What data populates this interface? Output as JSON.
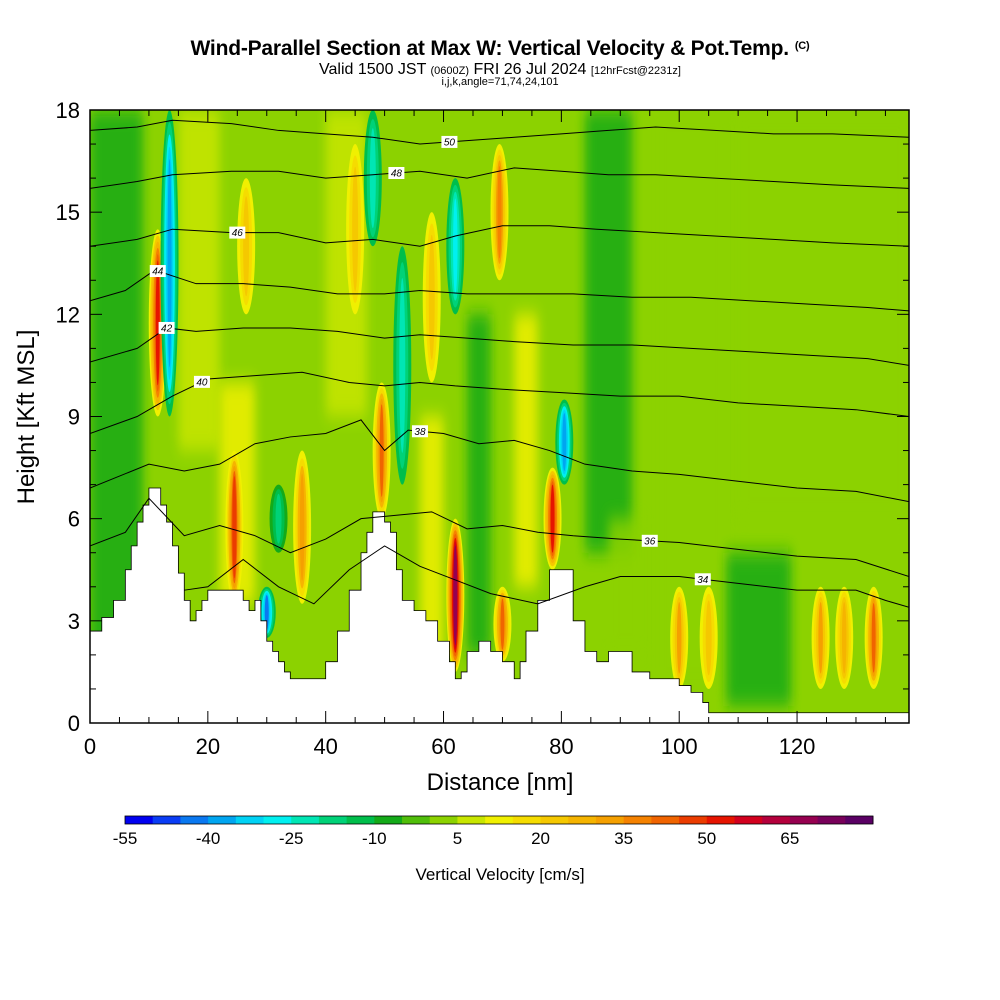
{
  "titles": {
    "main": "Wind-Parallel Section at Max W: Vertical Velocity & Pot.Temp.",
    "copyright": "(C)",
    "valid_prefix": "Valid 1500 JST",
    "valid_utc": "(0600Z)",
    "valid_date": "FRI 26 Jul 2024",
    "forecast": "[12hrFcst@2231z]",
    "params": "i,j,k,angle=71,74,24,101"
  },
  "chart_data": {
    "type": "heatmap",
    "xlabel": "Distance [nm]",
    "ylabel": "Height [Kft MSL]",
    "xlim": [
      0,
      139
    ],
    "ylim": [
      0,
      18
    ],
    "x_ticks": [
      0,
      20,
      40,
      60,
      80,
      100,
      120
    ],
    "y_ticks": [
      0,
      3,
      6,
      9,
      12,
      15,
      18
    ],
    "colorbar": {
      "title": "Vertical Velocity [cm/s]",
      "labels": [
        -55,
        -40,
        -25,
        -10,
        5,
        20,
        35,
        50,
        65
      ],
      "levels": [
        -55,
        -50,
        -45,
        -40,
        -35,
        -30,
        -25,
        -20,
        -15,
        -10,
        -5,
        0,
        5,
        10,
        15,
        20,
        25,
        30,
        35,
        40,
        45,
        50,
        55,
        60,
        65,
        70,
        75
      ],
      "colors": [
        "#0000f0",
        "#0a3cf5",
        "#0a78f0",
        "#00a5f0",
        "#00d2f5",
        "#00f0f0",
        "#00e6b4",
        "#00d278",
        "#00be4b",
        "#14aa19",
        "#50be0a",
        "#8cd200",
        "#c8e600",
        "#f0f000",
        "#f5dc00",
        "#f5c800",
        "#f5b400",
        "#f5a000",
        "#f58200",
        "#f06400",
        "#eb3c00",
        "#e61400",
        "#d2001e",
        "#b4003c",
        "#960050",
        "#78005a",
        "#5a0064"
      ]
    },
    "terrain": {
      "x": [
        0,
        2,
        4,
        6,
        7,
        8,
        9,
        10,
        11,
        12,
        13,
        14,
        15,
        16,
        17,
        18,
        19,
        20,
        22,
        24,
        26,
        27,
        28,
        29,
        30,
        31,
        32,
        33,
        34,
        36,
        38,
        40,
        42,
        44,
        46,
        47,
        48,
        49,
        50,
        51,
        52,
        53,
        55,
        57,
        59,
        61,
        62,
        63,
        64,
        66,
        68,
        70,
        72,
        73,
        74,
        76,
        78,
        80,
        82,
        84,
        86,
        88,
        90,
        92,
        95,
        98,
        100,
        102,
        104,
        105,
        106,
        110,
        120,
        130,
        136,
        139
      ],
      "y": [
        2.7,
        3.1,
        3.6,
        4.5,
        5.2,
        5.9,
        6.4,
        6.9,
        6.9,
        6.4,
        5.9,
        5.2,
        4.4,
        3.6,
        3.0,
        3.3,
        3.6,
        3.9,
        3.9,
        3.9,
        3.6,
        3.3,
        3.6,
        3.0,
        2.4,
        2.1,
        1.8,
        1.5,
        1.3,
        1.3,
        1.3,
        1.8,
        2.7,
        3.9,
        5.0,
        5.6,
        6.2,
        6.2,
        5.9,
        5.6,
        4.5,
        3.6,
        3.3,
        3.0,
        2.4,
        1.8,
        1.3,
        1.5,
        2.1,
        2.4,
        2.1,
        1.8,
        1.3,
        1.8,
        2.7,
        3.6,
        4.5,
        4.5,
        3.0,
        2.1,
        1.8,
        2.1,
        2.1,
        1.5,
        1.3,
        1.3,
        1.1,
        0.9,
        0.6,
        0.3,
        0.3,
        0.3,
        0.3,
        0.3,
        0.3,
        0.3
      ]
    },
    "updrafts": [
      {
        "x": 11.5,
        "y0": 9,
        "y1": 14.5,
        "w": 50
      },
      {
        "x": 24.5,
        "y0": 3.5,
        "y1": 8,
        "w": 48
      },
      {
        "x": 36,
        "y0": 3.5,
        "y1": 8,
        "w": 34
      },
      {
        "x": 49.5,
        "y0": 6,
        "y1": 10,
        "w": 42
      },
      {
        "x": 62,
        "y0": 1.5,
        "y1": 6,
        "w": 65
      },
      {
        "x": 70,
        "y0": 1.8,
        "y1": 4,
        "w": 40
      },
      {
        "x": 69.5,
        "y0": 13,
        "y1": 17,
        "w": 38
      },
      {
        "x": 78.5,
        "y0": 4.5,
        "y1": 7.5,
        "w": 50
      },
      {
        "x": 26.5,
        "y0": 12,
        "y1": 16,
        "w": 22
      },
      {
        "x": 45,
        "y0": 12,
        "y1": 17,
        "w": 20
      },
      {
        "x": 58,
        "y0": 10,
        "y1": 15,
        "w": 20
      },
      {
        "x": 100,
        "y0": 1,
        "y1": 4,
        "w": 30
      },
      {
        "x": 105,
        "y0": 1,
        "y1": 4,
        "w": 20
      },
      {
        "x": 124,
        "y0": 1,
        "y1": 4,
        "w": 30
      },
      {
        "x": 128,
        "y0": 1,
        "y1": 4,
        "w": 28
      },
      {
        "x": 133,
        "y0": 1,
        "y1": 4,
        "w": 42
      }
    ],
    "downdrafts": [
      {
        "x": 13.5,
        "y0": 9,
        "y1": 18,
        "w": -40
      },
      {
        "x": 30,
        "y0": 2.5,
        "y1": 4,
        "w": -42
      },
      {
        "x": 53,
        "y0": 7,
        "y1": 14,
        "w": -22
      },
      {
        "x": 62,
        "y0": 12,
        "y1": 16,
        "w": -28
      },
      {
        "x": 80.5,
        "y0": 7,
        "y1": 9.5,
        "w": -40
      },
      {
        "x": 48,
        "y0": 14,
        "y1": 18,
        "w": -25
      },
      {
        "x": 32,
        "y0": 5,
        "y1": 7,
        "w": -20
      }
    ],
    "theta_contours": [
      {
        "level": 34,
        "points": [
          [
            16,
            3.9
          ],
          [
            20,
            4.0
          ],
          [
            26,
            4.8
          ],
          [
            32,
            4.0
          ],
          [
            38,
            3.5
          ],
          [
            44,
            4.5
          ],
          [
            50,
            5.2
          ],
          [
            56,
            4.6
          ],
          [
            62,
            4.2
          ],
          [
            68,
            3.8
          ],
          [
            76,
            3.5
          ],
          [
            84,
            4.0
          ],
          [
            90,
            4.3
          ],
          [
            100,
            4.3
          ],
          [
            110,
            4.1
          ],
          [
            120,
            3.9
          ],
          [
            130,
            3.9
          ],
          [
            135,
            3.6
          ],
          [
            139,
            3.4
          ]
        ],
        "label_x": 104
      },
      {
        "level": 36,
        "points": [
          [
            0,
            5.2
          ],
          [
            6,
            5.6
          ],
          [
            10,
            6.6
          ],
          [
            16,
            5.5
          ],
          [
            22,
            5.8
          ],
          [
            28,
            5.5
          ],
          [
            34,
            5.0
          ],
          [
            40,
            5.4
          ],
          [
            46,
            6.0
          ],
          [
            52,
            6.1
          ],
          [
            58,
            6.2
          ],
          [
            64,
            5.7
          ],
          [
            70,
            5.8
          ],
          [
            76,
            5.6
          ],
          [
            82,
            5.5
          ],
          [
            90,
            5.4
          ],
          [
            100,
            5.3
          ],
          [
            110,
            5.1
          ],
          [
            120,
            4.9
          ],
          [
            130,
            4.8
          ],
          [
            139,
            4.3
          ]
        ],
        "label_x": 95
      },
      {
        "level": 38,
        "points": [
          [
            0,
            6.9
          ],
          [
            10,
            7.6
          ],
          [
            16,
            7.4
          ],
          [
            22,
            7.6
          ],
          [
            28,
            8.2
          ],
          [
            34,
            8.4
          ],
          [
            40,
            8.5
          ],
          [
            46,
            8.9
          ],
          [
            50,
            8.0
          ],
          [
            54,
            8.6
          ],
          [
            60,
            8.5
          ],
          [
            66,
            8.2
          ],
          [
            72,
            8.3
          ],
          [
            78,
            8.0
          ],
          [
            84,
            7.6
          ],
          [
            92,
            7.4
          ],
          [
            100,
            7.3
          ],
          [
            110,
            7.1
          ],
          [
            120,
            6.9
          ],
          [
            130,
            6.8
          ],
          [
            139,
            6.5
          ]
        ],
        "label_x": 56
      },
      {
        "level": 40,
        "points": [
          [
            0,
            8.5
          ],
          [
            8,
            9.0
          ],
          [
            14,
            9.6
          ],
          [
            20,
            10.1
          ],
          [
            28,
            10.2
          ],
          [
            36,
            10.3
          ],
          [
            44,
            10.0
          ],
          [
            50,
            9.9
          ],
          [
            56,
            10.0
          ],
          [
            62,
            9.9
          ],
          [
            70,
            9.8
          ],
          [
            80,
            9.7
          ],
          [
            90,
            9.6
          ],
          [
            100,
            9.6
          ],
          [
            110,
            9.4
          ],
          [
            120,
            9.3
          ],
          [
            130,
            9.2
          ],
          [
            139,
            9.0
          ]
        ],
        "label_x": 19
      },
      {
        "level": 42,
        "points": [
          [
            0,
            10.6
          ],
          [
            8,
            11.0
          ],
          [
            13,
            11.6
          ],
          [
            18,
            11.5
          ],
          [
            26,
            11.6
          ],
          [
            34,
            11.6
          ],
          [
            42,
            11.5
          ],
          [
            50,
            11.3
          ],
          [
            56,
            11.4
          ],
          [
            64,
            11.3
          ],
          [
            72,
            11.2
          ],
          [
            82,
            11.1
          ],
          [
            92,
            11.1
          ],
          [
            102,
            11.0
          ],
          [
            112,
            10.9
          ],
          [
            122,
            10.8
          ],
          [
            132,
            10.7
          ],
          [
            139,
            10.5
          ]
        ],
        "label_x": 13
      },
      {
        "level": 44,
        "points": [
          [
            0,
            12.4
          ],
          [
            6,
            12.7
          ],
          [
            11,
            13.3
          ],
          [
            18,
            12.9
          ],
          [
            26,
            12.9
          ],
          [
            34,
            12.8
          ],
          [
            42,
            12.6
          ],
          [
            50,
            12.6
          ],
          [
            56,
            12.7
          ],
          [
            64,
            12.6
          ],
          [
            72,
            12.6
          ],
          [
            82,
            12.6
          ],
          [
            92,
            12.5
          ],
          [
            102,
            12.5
          ],
          [
            112,
            12.4
          ],
          [
            122,
            12.3
          ],
          [
            132,
            12.2
          ],
          [
            139,
            12.1
          ]
        ],
        "label_x": 11.5
      },
      {
        "level": 46,
        "points": [
          [
            0,
            14.0
          ],
          [
            8,
            14.2
          ],
          [
            14,
            14.5
          ],
          [
            24,
            14.4
          ],
          [
            32,
            14.4
          ],
          [
            40,
            14.1
          ],
          [
            48,
            14.2
          ],
          [
            56,
            14.0
          ],
          [
            62,
            14.3
          ],
          [
            70,
            14.6
          ],
          [
            78,
            14.6
          ],
          [
            86,
            14.5
          ],
          [
            96,
            14.4
          ],
          [
            106,
            14.3
          ],
          [
            116,
            14.2
          ],
          [
            126,
            14.1
          ],
          [
            139,
            14.0
          ]
        ],
        "label_x": 25
      },
      {
        "level": 48,
        "points": [
          [
            0,
            15.7
          ],
          [
            8,
            15.9
          ],
          [
            14,
            16.1
          ],
          [
            24,
            16.2
          ],
          [
            32,
            16.2
          ],
          [
            40,
            16.0
          ],
          [
            48,
            16.1
          ],
          [
            56,
            16.2
          ],
          [
            64,
            16.0
          ],
          [
            72,
            16.3
          ],
          [
            80,
            16.2
          ],
          [
            88,
            16.1
          ],
          [
            96,
            16.1
          ],
          [
            106,
            16.0
          ],
          [
            116,
            15.9
          ],
          [
            126,
            15.8
          ],
          [
            139,
            15.7
          ]
        ],
        "label_x": 52
      },
      {
        "level": 50,
        "points": [
          [
            0,
            17.4
          ],
          [
            8,
            17.5
          ],
          [
            14,
            17.7
          ],
          [
            24,
            17.6
          ],
          [
            32,
            17.4
          ],
          [
            40,
            17.3
          ],
          [
            48,
            17.2
          ],
          [
            56,
            17.0
          ],
          [
            64,
            17.1
          ],
          [
            72,
            17.2
          ],
          [
            80,
            17.3
          ],
          [
            88,
            17.4
          ],
          [
            96,
            17.5
          ],
          [
            106,
            17.4
          ],
          [
            116,
            17.3
          ],
          [
            126,
            17.3
          ],
          [
            139,
            17.2
          ]
        ],
        "label_x": 61
      }
    ]
  }
}
